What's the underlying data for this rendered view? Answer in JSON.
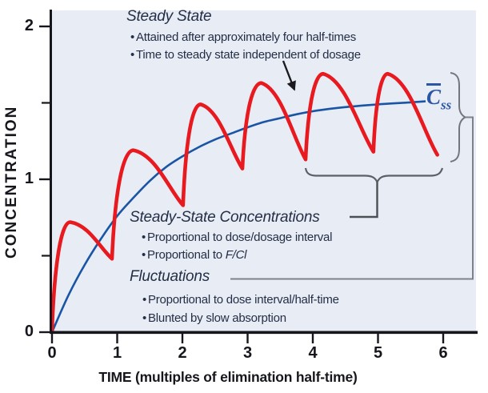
{
  "colors": {
    "plot_bg": "#e8edf5",
    "red_curve": "#e8191f",
    "blue_curve": "#1a55a5",
    "label_blue": "#2b56a4",
    "text": "#242e46",
    "axis": "#15171c",
    "brace_gray": "#73777d"
  },
  "y_axis": {
    "label": "CONCENTRATION"
  },
  "x_axis": {
    "label": "TIME (multiples of elimination half-time)"
  },
  "annotations": {
    "steady_state": {
      "title": "Steady State",
      "bullet1": "Attained after approximately four half-times",
      "bullet2": "Time to steady state independent of dosage"
    },
    "ss_conc": {
      "title": "Steady-State Concentrations",
      "bullet1": "Proportional to dose/dosage interval",
      "bullet2_prefix": "Proportional to ",
      "bullet2_italic": "F/Cl"
    },
    "fluctuations": {
      "title": "Fluctuations",
      "bullet1": "Proportional to dose interval/half-time",
      "bullet2": "Blunted by slow absorption"
    },
    "css_label": {
      "main": "C",
      "sub": "ss"
    }
  },
  "chart_data": {
    "type": "line",
    "xlabel": "TIME (multiples of elimination half-time)",
    "ylabel": "CONCENTRATION",
    "xlim": [
      0,
      6.5
    ],
    "ylim": [
      0,
      2.15
    ],
    "x_ticks": [
      0,
      1,
      2,
      3,
      4,
      5,
      6
    ],
    "y_ticks": [
      0,
      1,
      2
    ],
    "y_minor_ticks": [
      0.5,
      1.5
    ],
    "grid": false,
    "legend": "none",
    "series": [
      {
        "name": "average concentration (smooth accumulation curve, approaches mean Css ~1.5)",
        "color": "#1a55a5",
        "style": "smooth",
        "points": [
          [
            0,
            0
          ],
          [
            0.25,
            0.24
          ],
          [
            0.5,
            0.44
          ],
          [
            0.75,
            0.61
          ],
          [
            1,
            0.76
          ],
          [
            1.25,
            0.88
          ],
          [
            1.5,
            0.99
          ],
          [
            1.75,
            1.08
          ],
          [
            2,
            1.15
          ],
          [
            2.25,
            1.21
          ],
          [
            2.5,
            1.26
          ],
          [
            2.75,
            1.3
          ],
          [
            3,
            1.34
          ],
          [
            3.25,
            1.375
          ],
          [
            3.5,
            1.4
          ],
          [
            3.75,
            1.425
          ],
          [
            4,
            1.445
          ],
          [
            4.25,
            1.46
          ],
          [
            4.5,
            1.472
          ],
          [
            4.75,
            1.482
          ],
          [
            5,
            1.49
          ],
          [
            5.25,
            1.497
          ],
          [
            5.5,
            1.503
          ],
          [
            5.73,
            1.51
          ]
        ]
      },
      {
        "name": "fluctuating concentration with intermittent dosing (peaks and troughs)",
        "color": "#e8191f",
        "style": "peaks-troughs",
        "keypoints": [
          {
            "t": 0,
            "c": 0.01,
            "kind": "start"
          },
          {
            "t": 0.28,
            "c": 0.72,
            "kind": "peak"
          },
          {
            "t": 0.92,
            "c": 0.48,
            "kind": "trough"
          },
          {
            "t": 1.25,
            "c": 1.19,
            "kind": "peak"
          },
          {
            "t": 2.01,
            "c": 0.83,
            "kind": "trough"
          },
          {
            "t": 2.28,
            "c": 1.49,
            "kind": "peak"
          },
          {
            "t": 2.92,
            "c": 1.07,
            "kind": "trough"
          },
          {
            "t": 3.21,
            "c": 1.63,
            "kind": "peak"
          },
          {
            "t": 3.89,
            "c": 1.13,
            "kind": "trough"
          },
          {
            "t": 4.16,
            "c": 1.69,
            "kind": "peak"
          },
          {
            "t": 4.93,
            "c": 1.18,
            "kind": "trough"
          },
          {
            "t": 5.15,
            "c": 1.69,
            "kind": "peak"
          },
          {
            "t": 5.91,
            "c": 1.16,
            "kind": "end"
          }
        ]
      }
    ]
  }
}
